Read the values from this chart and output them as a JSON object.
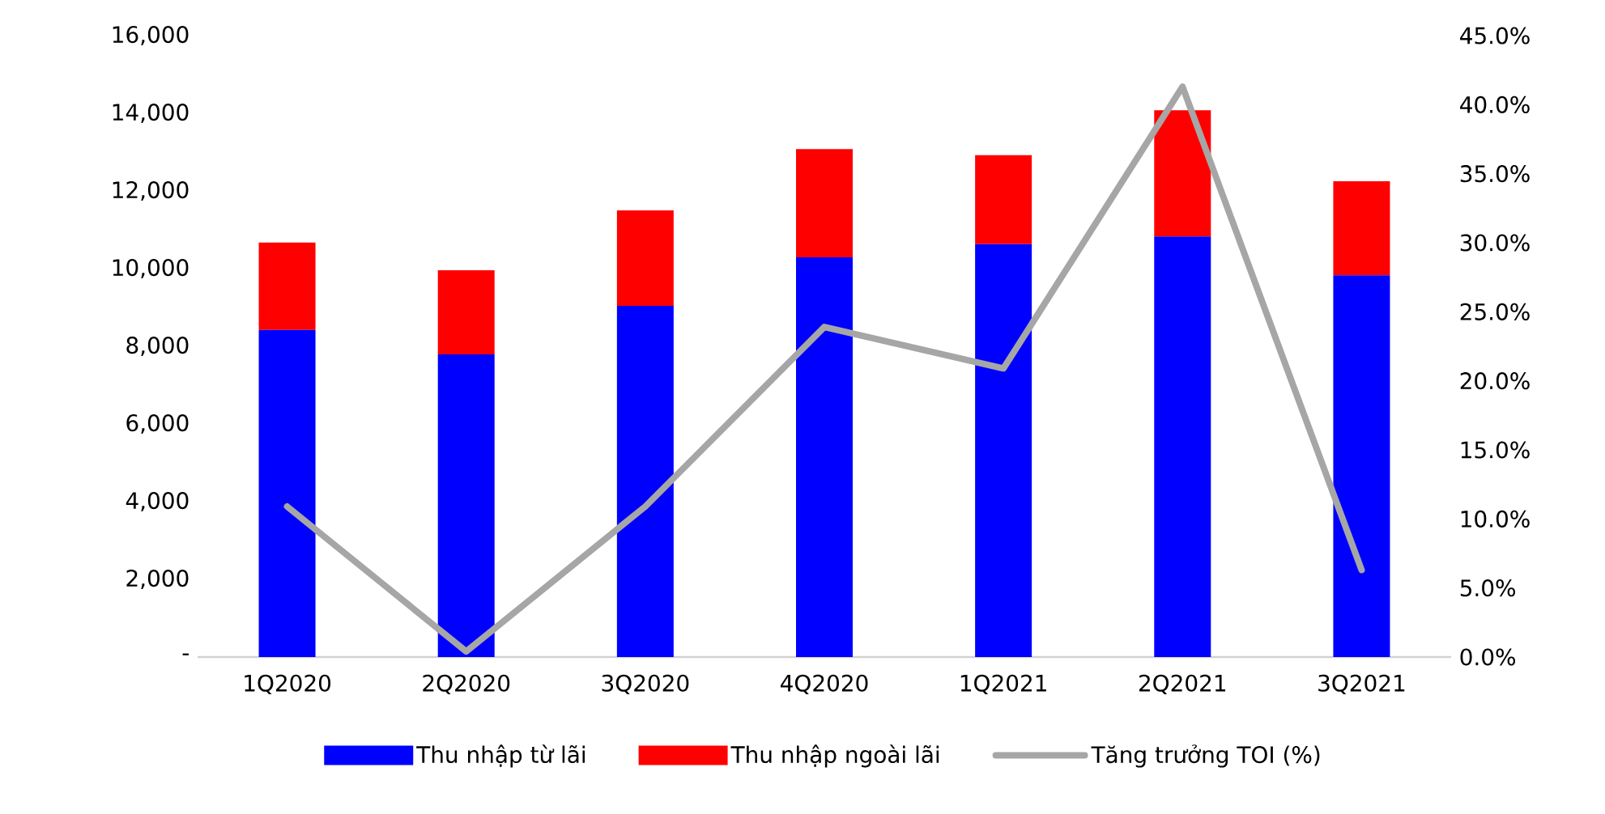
{
  "chart_data": {
    "type": "bar",
    "stacked": true,
    "legend": "bottom",
    "categories": [
      "1Q2020",
      "2Q2020",
      "3Q2020",
      "4Q2020",
      "1Q2021",
      "2Q2021",
      "3Q2021"
    ],
    "series": [
      {
        "name": "Thu nhập từ lãi",
        "color": "#0000ff",
        "values": [
          8420,
          7790,
          9040,
          10290,
          10630,
          10830,
          9830
        ]
      },
      {
        "name": "Thu nhập ngoài lãi",
        "color": "#ff0000",
        "values": [
          2250,
          2170,
          2460,
          2790,
          2290,
          3250,
          2420
        ]
      },
      {
        "name": "Tăng trưởng TOI (%)",
        "type": "line",
        "axis": "y2",
        "color": "#a6a6a6",
        "values": [
          10.9,
          0.4,
          10.9,
          23.9,
          20.9,
          41.3,
          6.3
        ]
      }
    ],
    "ylim": [
      0,
      16000
    ],
    "yticks": [
      {
        "value": 0,
        "label": "-"
      },
      {
        "value": 2000,
        "label": "2,000"
      },
      {
        "value": 4000,
        "label": "4,000"
      },
      {
        "value": 6000,
        "label": "6,000"
      },
      {
        "value": 8000,
        "label": "8,000"
      },
      {
        "value": 10000,
        "label": "10,000"
      },
      {
        "value": 12000,
        "label": "12,000"
      },
      {
        "value": 14000,
        "label": "14,000"
      },
      {
        "value": 16000,
        "label": "16,000"
      }
    ],
    "y2lim": [
      0,
      45
    ],
    "y2ticks": [
      {
        "value": 0,
        "label": "0.0%"
      },
      {
        "value": 5,
        "label": "5.0%"
      },
      {
        "value": 10,
        "label": "10.0%"
      },
      {
        "value": 15,
        "label": "15.0%"
      },
      {
        "value": 20,
        "label": "20.0%"
      },
      {
        "value": 25,
        "label": "25.0%"
      },
      {
        "value": 30,
        "label": "30.0%"
      },
      {
        "value": 35,
        "label": "35.0%"
      },
      {
        "value": 40,
        "label": "40.0%"
      },
      {
        "value": 45,
        "label": "45.0%"
      }
    ]
  }
}
